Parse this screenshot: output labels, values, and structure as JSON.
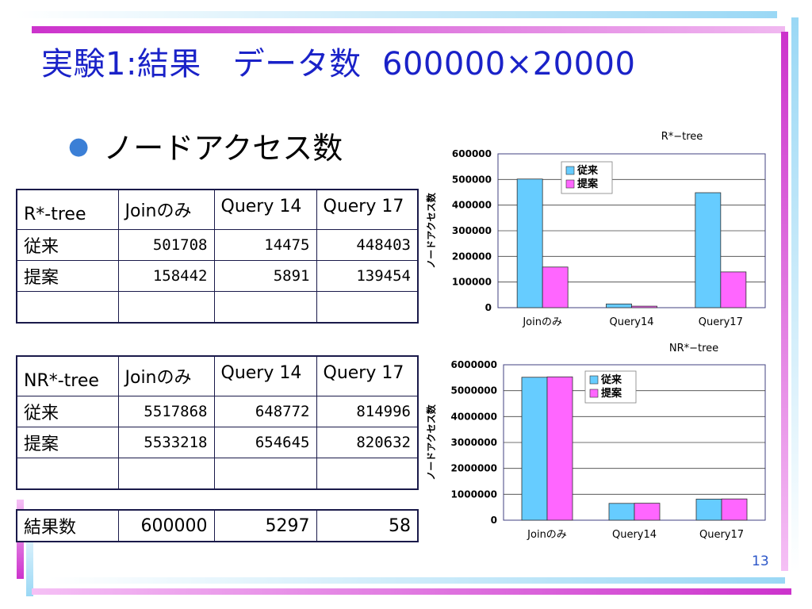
{
  "title": "実験1:結果   データ数  600000×20000",
  "bullet": "ノードアクセス数",
  "page_number": "13",
  "colors": {
    "series1": "#66ccff",
    "series2": "#ff66ff",
    "title": "#1a22c8",
    "bar_pink": "#cc33cc",
    "bar_blue": "#66ccee"
  },
  "tables": {
    "rtree": {
      "header": [
        "R*-tree",
        "Joinのみ",
        "Query 14",
        "Query 17"
      ],
      "rows": [
        [
          "従来",
          "501708",
          "14475",
          "448403"
        ],
        [
          "提案",
          "158442",
          "5891",
          "139454"
        ]
      ]
    },
    "nrtree": {
      "header": [
        "NR*-tree",
        "Joinのみ",
        "Query 14",
        "Query 17"
      ],
      "rows": [
        [
          "従来",
          "5517868",
          "648772",
          "814996"
        ],
        [
          "提案",
          "5533218",
          "654645",
          "820632"
        ]
      ]
    },
    "results": [
      "結果数",
      "600000",
      "5297",
      "58"
    ]
  },
  "chart_data": [
    {
      "type": "bar",
      "title": "R*−tree",
      "categories": [
        "Joinのみ",
        "Query14",
        "Query17"
      ],
      "series": [
        {
          "name": "従来",
          "values": [
            501708,
            14475,
            448403
          ]
        },
        {
          "name": "提案",
          "values": [
            158442,
            5891,
            139454
          ]
        }
      ],
      "ylabel": "ノードアクセス数",
      "ylim": [
        0,
        600000
      ],
      "yticks": [
        "0",
        "100000",
        "200000",
        "300000",
        "400000",
        "500000",
        "600000"
      ],
      "grid": true,
      "legend": "top-right"
    },
    {
      "type": "bar",
      "title": "NR*−tree",
      "categories": [
        "Joinのみ",
        "Query14",
        "Query17"
      ],
      "series": [
        {
          "name": "従来",
          "values": [
            5517868,
            648772,
            814996
          ]
        },
        {
          "name": "提案",
          "values": [
            5533218,
            654645,
            820632
          ]
        }
      ],
      "ylabel": "ノードアクセス数",
      "ylim": [
        0,
        6000000
      ],
      "yticks": [
        "0",
        "1000000",
        "2000000",
        "3000000",
        "4000000",
        "5000000",
        "6000000"
      ],
      "grid": true,
      "legend": "top-right"
    }
  ]
}
